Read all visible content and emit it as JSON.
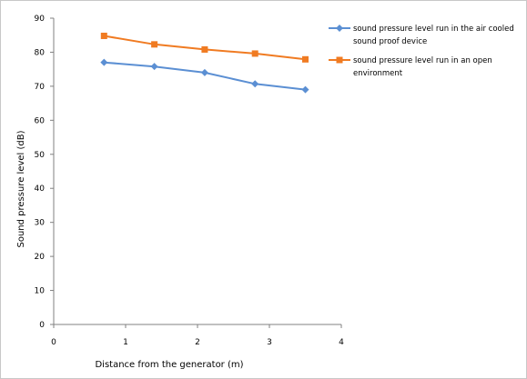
{
  "chart_data": {
    "type": "scatter",
    "xlabel": "Distance from the generator (m)",
    "ylabel": "Sound pressure level (dB)",
    "xlim": [
      0,
      4
    ],
    "ylim": [
      0,
      90
    ],
    "xticks": [
      "0",
      "1",
      "2",
      "3",
      "4"
    ],
    "yticks": [
      "0",
      "10",
      "20",
      "30",
      "40",
      "50",
      "60",
      "70",
      "80",
      "90"
    ],
    "grid": false,
    "legend_position": "right",
    "series": [
      {
        "name_lines": [
          "sound pressure level run in the air cooled",
          "sound proof device"
        ],
        "color": "#5b8fd3",
        "marker": "diamond",
        "x": [
          0.7,
          1.4,
          2.1,
          2.8,
          3.5
        ],
        "y": [
          77,
          75.8,
          74,
          70.7,
          69
        ]
      },
      {
        "name_lines": [
          "sound pressure level run in an open",
          "environment"
        ],
        "color": "#f07b22",
        "marker": "square",
        "x": [
          0.7,
          1.4,
          2.1,
          2.8,
          3.5
        ],
        "y": [
          84.8,
          82.3,
          80.8,
          79.6,
          77.9
        ]
      }
    ]
  }
}
